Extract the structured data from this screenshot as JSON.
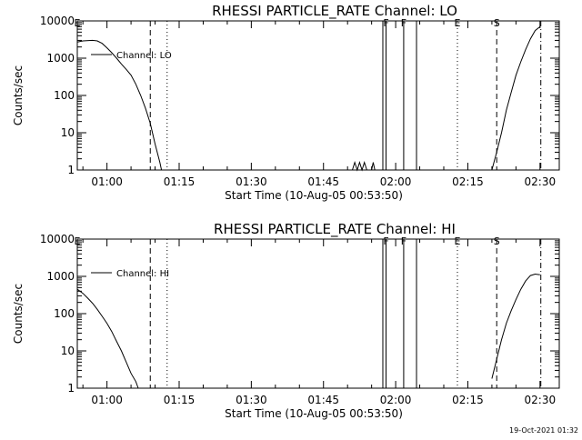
{
  "chart_data": [
    {
      "type": "line",
      "title": "RHESSI PARTICLE_RATE Channel: LO",
      "xlabel": "Start Time (10-Aug-05 00:53:50)",
      "ylabel": "Counts/sec",
      "yscale": "log",
      "ylim": [
        1,
        10000
      ],
      "yticks": [
        "1",
        "10",
        "100",
        "1000",
        "10000"
      ],
      "xlim": [
        "00:53:50",
        "02:34:00"
      ],
      "xticks": [
        "01:00",
        "01:15",
        "01:30",
        "01:45",
        "02:00",
        "02:15",
        "02:30"
      ],
      "legend": {
        "label": "Channel: LO",
        "placement": "top-left"
      },
      "grid": false,
      "series": [
        {
          "name": "Channel: LO",
          "segments": [
            [
              [
                "00:53:50",
                2700
              ],
              [
                "00:55:00",
                2900
              ],
              [
                "00:57:00",
                3000
              ],
              [
                "00:58:00",
                2900
              ],
              [
                "00:59:00",
                2500
              ],
              [
                "01:00:00",
                1900
              ],
              [
                "01:01:00",
                1400
              ],
              [
                "01:02:00",
                1000
              ],
              [
                "01:03:00",
                700
              ],
              [
                "01:04:00",
                500
              ],
              [
                "01:05:00",
                350
              ],
              [
                "01:06:00",
                200
              ],
              [
                "01:07:00",
                100
              ],
              [
                "01:08:00",
                45
              ],
              [
                "01:09:00",
                18
              ],
              [
                "01:10:00",
                5
              ],
              [
                "01:11:00",
                1.6
              ],
              [
                "01:11:20",
                1
              ]
            ],
            [
              [
                "01:51:00",
                1
              ],
              [
                "01:51:30",
                1.6
              ],
              [
                "01:52:00",
                1
              ],
              [
                "01:52:30",
                1.6
              ],
              [
                "01:53:00",
                1
              ],
              [
                "01:53:30",
                1.6
              ],
              [
                "01:54:00",
                1
              ],
              [
                "01:55:00",
                1
              ],
              [
                "01:55:20",
                1.6
              ],
              [
                "01:55:40",
                1
              ]
            ],
            [
              [
                "02:20:00",
                1
              ],
              [
                "02:21:00",
                3
              ],
              [
                "02:22:00",
                10
              ],
              [
                "02:23:00",
                40
              ],
              [
                "02:24:00",
                120
              ],
              [
                "02:25:00",
                350
              ],
              [
                "02:26:00",
                800
              ],
              [
                "02:27:00",
                1700
              ],
              [
                "02:28:00",
                3300
              ],
              [
                "02:29:00",
                5500
              ],
              [
                "02:30:00",
                7000
              ]
            ]
          ]
        }
      ],
      "markers": [
        {
          "time": "00:53:50",
          "style": "dashdot",
          "label": "E"
        },
        {
          "time": "01:09:00",
          "style": "dashed",
          "label": ""
        },
        {
          "time": "01:12:30",
          "style": "dotted",
          "label": ""
        },
        {
          "time": "01:57:20",
          "style": "solid",
          "label": ""
        },
        {
          "time": "01:58:00",
          "style": "solid",
          "label": "F"
        },
        {
          "time": "02:01:40",
          "style": "solid",
          "label": "F"
        },
        {
          "time": "02:04:20",
          "style": "solid",
          "label": ""
        },
        {
          "time": "02:12:50",
          "style": "dotted",
          "label": "E"
        },
        {
          "time": "02:21:00",
          "style": "dashed",
          "label": "S"
        },
        {
          "time": "02:30:10",
          "style": "dashdot",
          "label": ""
        }
      ]
    },
    {
      "type": "line",
      "title": "RHESSI PARTICLE_RATE Channel: HI",
      "xlabel": "Start Time (10-Aug-05 00:53:50)",
      "ylabel": "Counts/sec",
      "yscale": "log",
      "ylim": [
        1,
        10000
      ],
      "yticks": [
        "1",
        "10",
        "100",
        "1000",
        "10000"
      ],
      "xlim": [
        "00:53:50",
        "02:34:00"
      ],
      "xticks": [
        "01:00",
        "01:15",
        "01:30",
        "01:45",
        "02:00",
        "02:15",
        "02:30"
      ],
      "legend": {
        "label": "Channel: HI",
        "placement": "top-left"
      },
      "grid": false,
      "series": [
        {
          "name": "Channel: HI",
          "segments": [
            [
              [
                "00:53:50",
                450
              ],
              [
                "00:55:00",
                350
              ],
              [
                "00:56:00",
                260
              ],
              [
                "00:57:00",
                190
              ],
              [
                "00:58:00",
                130
              ],
              [
                "00:59:00",
                85
              ],
              [
                "01:00:00",
                55
              ],
              [
                "01:01:00",
                33
              ],
              [
                "01:02:00",
                18
              ],
              [
                "01:03:00",
                10
              ],
              [
                "01:04:00",
                5
              ],
              [
                "01:05:00",
                2.5
              ],
              [
                "01:06:00",
                1.5
              ],
              [
                "01:06:30",
                1
              ]
            ],
            [
              [
                "02:20:00",
                1.8
              ],
              [
                "02:21:00",
                6
              ],
              [
                "02:22:00",
                20
              ],
              [
                "02:23:00",
                55
              ],
              [
                "02:24:00",
                120
              ],
              [
                "02:25:00",
                240
              ],
              [
                "02:26:00",
                450
              ],
              [
                "02:27:00",
                750
              ],
              [
                "02:28:00",
                1050
              ],
              [
                "02:29:00",
                1150
              ],
              [
                "02:30:00",
                1100
              ]
            ]
          ]
        }
      ],
      "markers": [
        {
          "time": "00:53:50",
          "style": "dashdot",
          "label": "E"
        },
        {
          "time": "01:09:00",
          "style": "dashed",
          "label": ""
        },
        {
          "time": "01:12:30",
          "style": "dotted",
          "label": ""
        },
        {
          "time": "01:57:20",
          "style": "solid",
          "label": ""
        },
        {
          "time": "01:58:00",
          "style": "solid",
          "label": "F"
        },
        {
          "time": "02:01:40",
          "style": "solid",
          "label": "F"
        },
        {
          "time": "02:04:20",
          "style": "solid",
          "label": ""
        },
        {
          "time": "02:12:50",
          "style": "dotted",
          "label": "E"
        },
        {
          "time": "02:21:00",
          "style": "dashed",
          "label": "S"
        },
        {
          "time": "02:30:10",
          "style": "dashdot",
          "label": ""
        }
      ]
    }
  ],
  "footer": {
    "timestamp": "19-Oct-2021 01:32"
  },
  "colors": {
    "background": "#ffffff",
    "foreground": "#000000"
  }
}
